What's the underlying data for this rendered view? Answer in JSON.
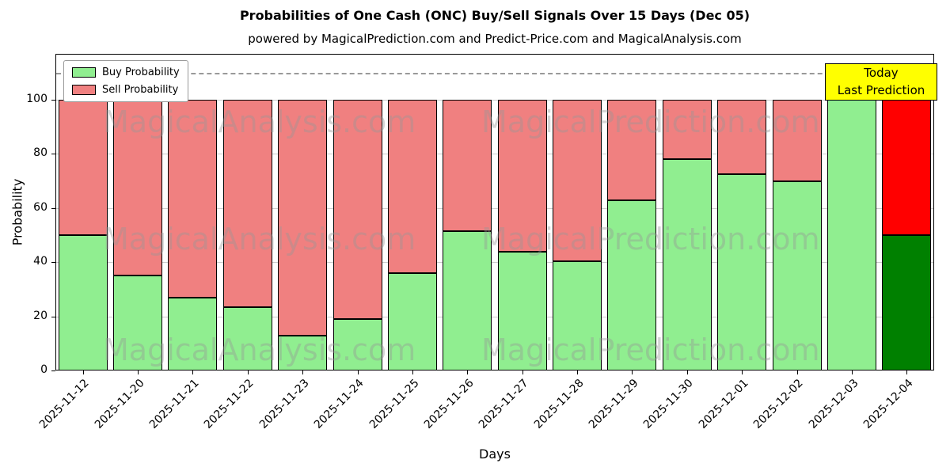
{
  "title": "Probabilities of One Cash (ONC) Buy/Sell Signals Over 15 Days (Dec 05)",
  "subtitle": "powered by MagicalPrediction.com and Predict-Price.com and MagicalAnalysis.com",
  "legend": {
    "buy_label": "Buy Probability",
    "sell_label": "Sell Probability"
  },
  "today_box": {
    "line1": "Today",
    "line2": "Last Prediction"
  },
  "watermarks": [
    "MagicalAnalysis.com",
    "MagicalPrediction.com"
  ],
  "colors": {
    "buy": "#90EE90",
    "sell": "#F08080",
    "today_buy": "#008000",
    "today_sell": "#FF0000",
    "today_box_bg": "#FFFF00",
    "gridline": "#CCCCCC",
    "dashed_line": "#999999",
    "watermark": "rgba(150,150,150,0.4)"
  },
  "chart_data": {
    "type": "bar",
    "stacked": true,
    "title": "Probabilities of One Cash (ONC) Buy/Sell Signals Over 15 Days (Dec 05)",
    "subtitle": "powered by MagicalPrediction.com and Predict-Price.com and MagicalAnalysis.com",
    "xlabel": "Days",
    "ylabel": "Probability",
    "categories": [
      "2025-11-12",
      "2025-11-20",
      "2025-11-21",
      "2025-11-22",
      "2025-11-23",
      "2025-11-24",
      "2025-11-25",
      "2025-11-26",
      "2025-11-27",
      "2025-11-28",
      "2025-11-29",
      "2025-11-30",
      "2025-12-01",
      "2025-12-02",
      "2025-12-03",
      "2025-12-04"
    ],
    "series": [
      {
        "name": "Buy Probability",
        "color": "#90EE90",
        "values": [
          50,
          35,
          27,
          23.5,
          13,
          19,
          36,
          51.5,
          44,
          40.5,
          63,
          78,
          72.5,
          70,
          100,
          50
        ]
      },
      {
        "name": "Sell Probability",
        "color": "#F08080",
        "values": [
          50,
          65,
          73,
          76.5,
          87,
          81,
          64,
          48.5,
          56,
          59.5,
          37,
          22,
          27.5,
          30,
          0,
          50
        ]
      }
    ],
    "today_index": 15,
    "today_colors": {
      "buy": "#008000",
      "sell": "#FF0000"
    },
    "yticks": [
      0,
      20,
      40,
      60,
      80,
      100
    ],
    "ylim": [
      0,
      117
    ],
    "dashed_line_y": 110,
    "grid": true,
    "legend_position": "upper left"
  }
}
